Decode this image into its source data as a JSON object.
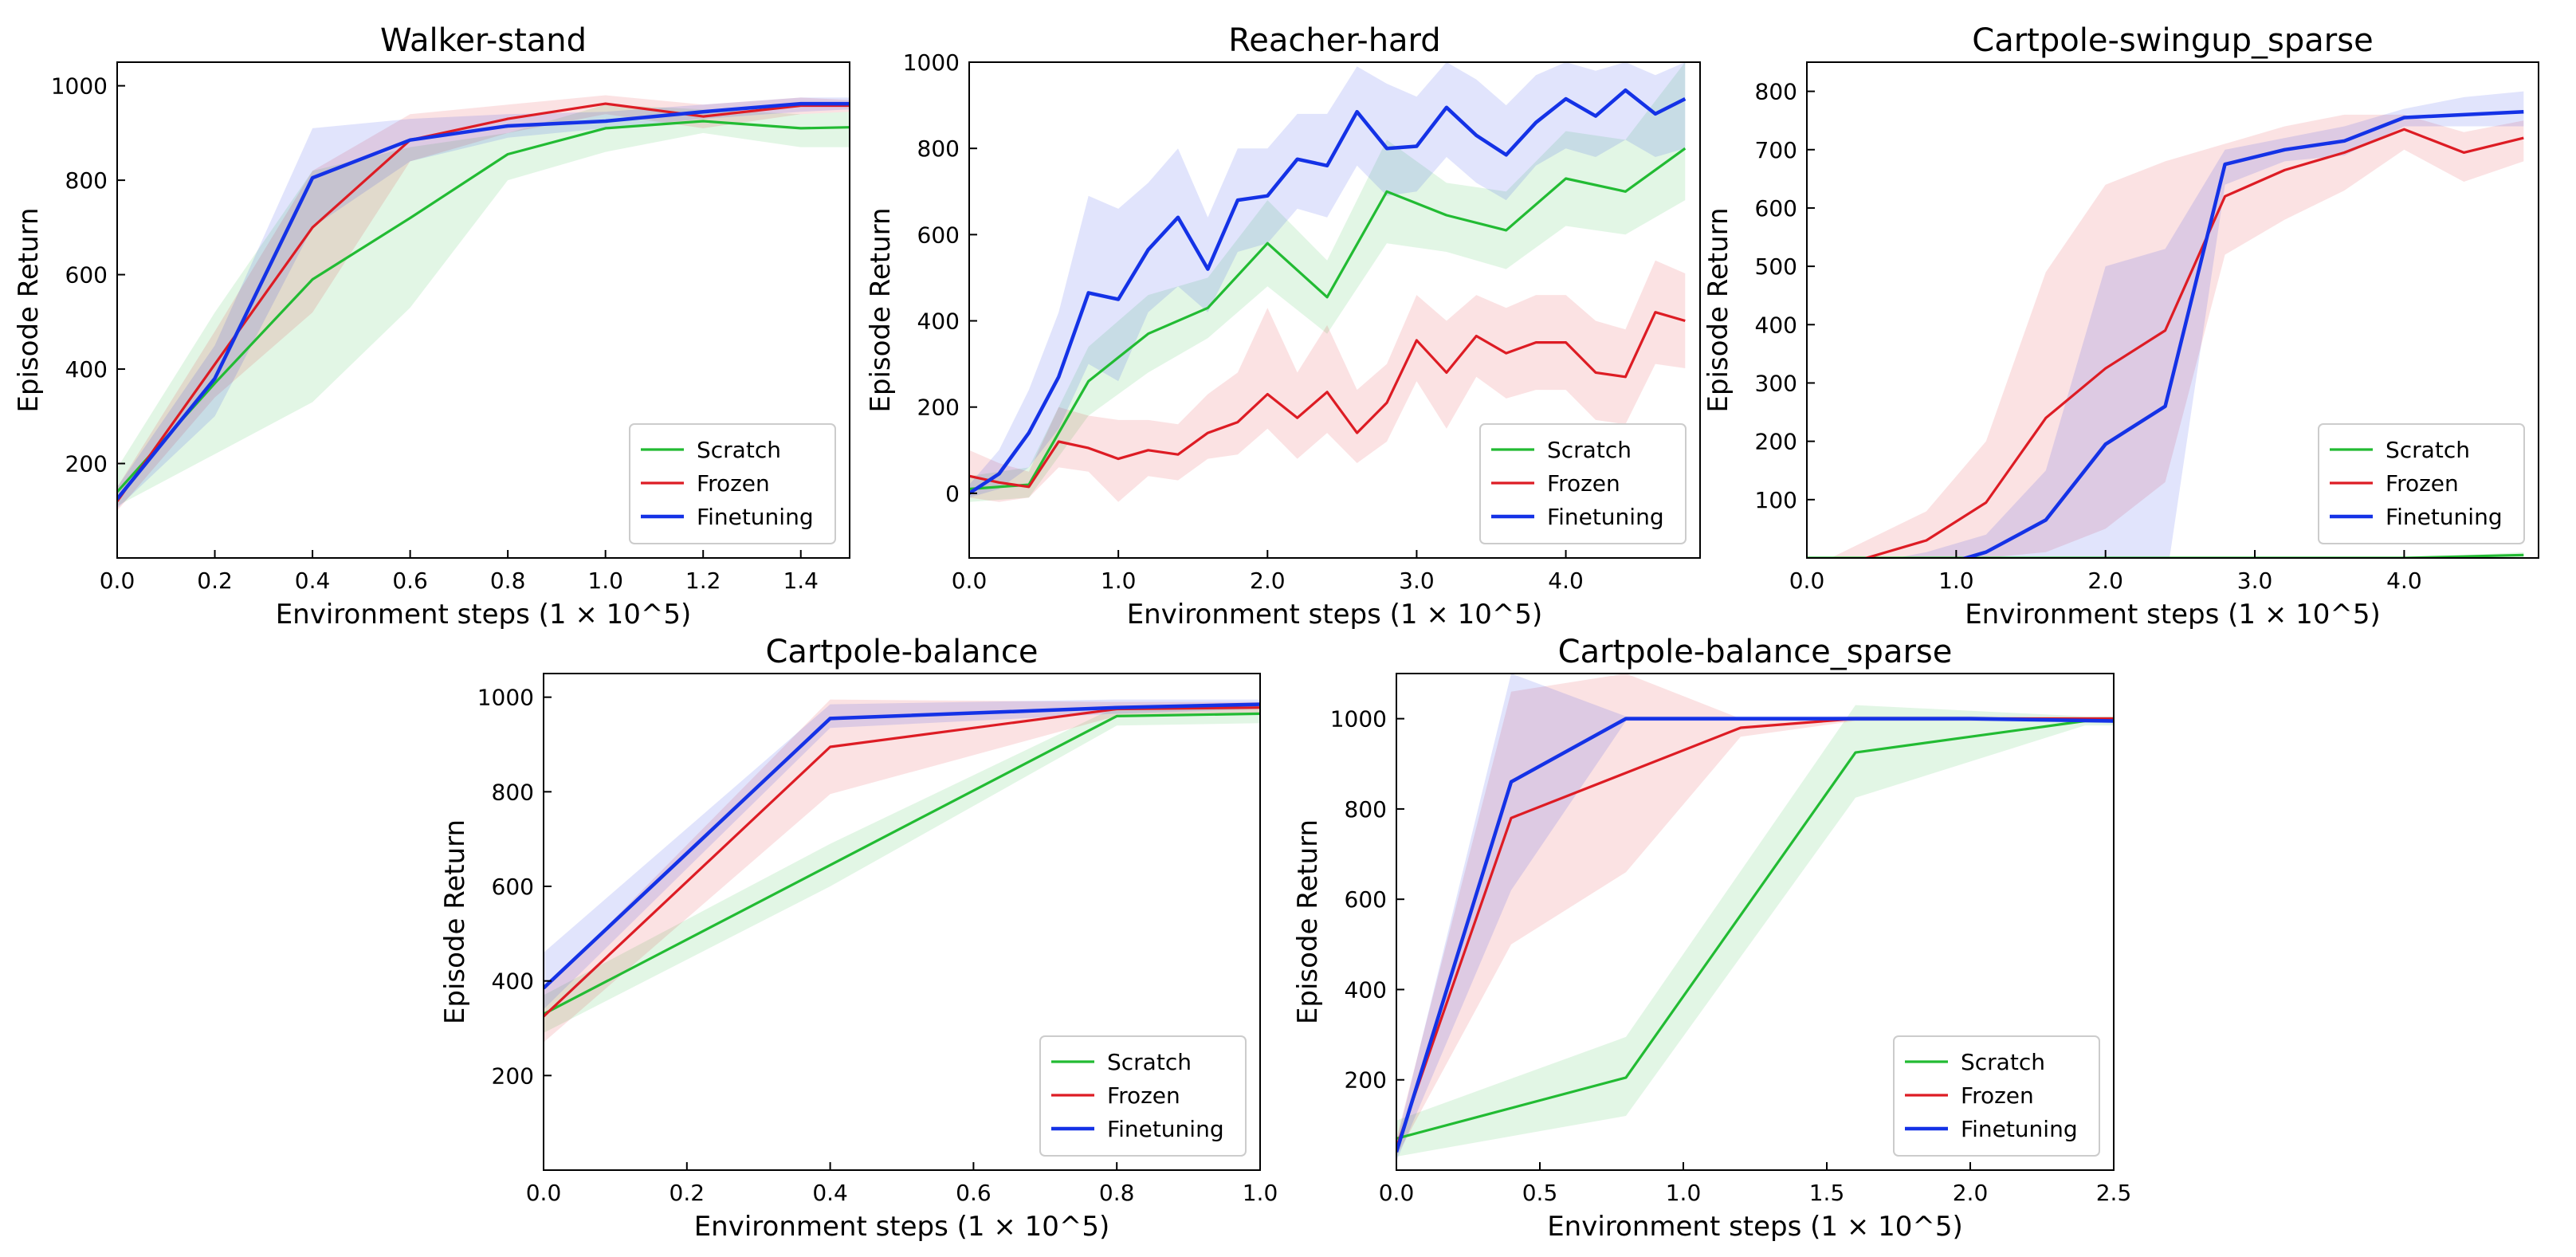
{
  "chart_data": [
    {
      "type": "line",
      "title": "Walker-stand",
      "xlabel": "Environment steps (1 × 10^5)",
      "ylabel": "Episode Return",
      "xlim": [
        0,
        1.5
      ],
      "ylim": [
        0,
        1050
      ],
      "xticks": [
        0,
        0.2,
        0.4,
        0.6,
        0.8,
        1.0,
        1.2,
        1.4
      ],
      "xtick_labels": [
        "0.0",
        "0.2",
        "0.4",
        "0.6",
        "0.8",
        "1.0",
        "1.2",
        "1.4"
      ],
      "yticks": [
        200,
        400,
        600,
        800,
        1000
      ],
      "ytick_labels": [
        "200",
        "400",
        "600",
        "800",
        "1000"
      ],
      "legend_position": "bottom-right",
      "series": [
        {
          "name": "Scratch",
          "color": "#22bb33",
          "x": [
            0,
            0.2,
            0.4,
            0.6,
            0.8,
            1.0,
            1.2,
            1.4,
            1.5
          ],
          "y": [
            140,
            370,
            590,
            720,
            855,
            910,
            925,
            910,
            912
          ],
          "lower": [
            110,
            220,
            330,
            530,
            800,
            860,
            900,
            870,
            870
          ],
          "upper": [
            190,
            520,
            820,
            870,
            900,
            960,
            950,
            940,
            945
          ]
        },
        {
          "name": "Frozen",
          "color": "#dd1c24",
          "x": [
            0,
            0.2,
            0.4,
            0.6,
            0.8,
            1.0,
            1.2,
            1.4,
            1.5
          ],
          "y": [
            120,
            410,
            700,
            885,
            930,
            962,
            935,
            958,
            958
          ],
          "lower": [
            100,
            340,
            520,
            840,
            900,
            940,
            910,
            940,
            945
          ],
          "upper": [
            150,
            480,
            820,
            940,
            960,
            980,
            960,
            975,
            970
          ]
        },
        {
          "name": "Finetuning",
          "color": "#1432e6",
          "x": [
            0,
            0.2,
            0.4,
            0.6,
            0.8,
            1.0,
            1.2,
            1.4,
            1.5
          ],
          "y": [
            125,
            380,
            805,
            885,
            915,
            925,
            945,
            962,
            962
          ],
          "lower": [
            105,
            300,
            700,
            840,
            890,
            910,
            930,
            945,
            950
          ],
          "upper": [
            150,
            450,
            910,
            930,
            940,
            945,
            960,
            975,
            975
          ]
        }
      ]
    },
    {
      "type": "line",
      "title": "Reacher-hard",
      "xlabel": "Environment steps (1 × 10^5)",
      "ylabel": "Episode Return",
      "xlim": [
        0,
        4.9
      ],
      "ylim": [
        -150,
        1000
      ],
      "xticks": [
        0,
        1,
        2,
        3,
        4
      ],
      "xtick_labels": [
        "0.0",
        "1.0",
        "2.0",
        "3.0",
        "4.0"
      ],
      "yticks": [
        0,
        200,
        400,
        600,
        800,
        1000
      ],
      "ytick_labels": [
        "0",
        "200",
        "400",
        "600",
        "800",
        "1000"
      ],
      "legend_position": "bottom-right",
      "series": [
        {
          "name": "Scratch",
          "color": "#22bb33",
          "x": [
            0,
            0.4,
            0.8,
            1.2,
            1.6,
            2.0,
            2.4,
            2.8,
            3.2,
            3.6,
            4.0,
            4.4,
            4.8
          ],
          "y": [
            10,
            20,
            260,
            370,
            430,
            580,
            455,
            700,
            645,
            610,
            730,
            700,
            800
          ],
          "lower": [
            -20,
            -10,
            180,
            280,
            360,
            480,
            370,
            580,
            560,
            520,
            620,
            600,
            680
          ],
          "upper": [
            40,
            60,
            340,
            460,
            500,
            680,
            540,
            820,
            720,
            700,
            840,
            820,
            1000
          ]
        },
        {
          "name": "Frozen",
          "color": "#dd1c24",
          "x": [
            0,
            0.2,
            0.4,
            0.6,
            0.8,
            1.0,
            1.2,
            1.4,
            1.6,
            1.8,
            2.0,
            2.2,
            2.4,
            2.6,
            2.8,
            3.0,
            3.2,
            3.4,
            3.6,
            3.8,
            4.0,
            4.2,
            4.4,
            4.6,
            4.8
          ],
          "y": [
            40,
            25,
            15,
            120,
            105,
            80,
            100,
            90,
            140,
            165,
            230,
            175,
            235,
            140,
            210,
            355,
            280,
            365,
            325,
            350,
            350,
            280,
            270,
            420,
            400
          ],
          "lower": [
            -10,
            -20,
            -10,
            60,
            50,
            -20,
            40,
            30,
            80,
            90,
            150,
            80,
            140,
            70,
            120,
            260,
            150,
            270,
            220,
            240,
            240,
            170,
            160,
            300,
            290
          ],
          "upper": [
            100,
            70,
            50,
            200,
            180,
            170,
            170,
            160,
            230,
            280,
            430,
            280,
            390,
            240,
            300,
            460,
            400,
            460,
            430,
            460,
            460,
            400,
            380,
            540,
            510
          ]
        },
        {
          "name": "Finetuning",
          "color": "#1432e6",
          "x": [
            0,
            0.2,
            0.4,
            0.6,
            0.8,
            1.0,
            1.2,
            1.4,
            1.6,
            1.8,
            2.0,
            2.2,
            2.4,
            2.6,
            2.8,
            3.0,
            3.2,
            3.4,
            3.6,
            3.8,
            4.0,
            4.2,
            4.4,
            4.6,
            4.8
          ],
          "y": [
            0,
            45,
            140,
            270,
            465,
            450,
            565,
            640,
            520,
            680,
            690,
            775,
            760,
            885,
            800,
            805,
            895,
            830,
            785,
            860,
            915,
            875,
            935,
            880,
            915
          ],
          "lower": [
            -10,
            10,
            60,
            150,
            300,
            260,
            420,
            480,
            420,
            560,
            580,
            660,
            640,
            760,
            690,
            700,
            780,
            720,
            680,
            760,
            800,
            780,
            820,
            780,
            800
          ],
          "upper": [
            20,
            100,
            240,
            420,
            690,
            660,
            720,
            800,
            640,
            800,
            800,
            880,
            880,
            990,
            950,
            920,
            1000,
            960,
            900,
            970,
            1000,
            980,
            1000,
            970,
            1000
          ]
        }
      ]
    },
    {
      "type": "line",
      "title": "Cartpole-swingup_sparse",
      "xlabel": "Environment steps (1 × 10^5)",
      "ylabel": "Episode Return",
      "xlim": [
        0,
        4.9
      ],
      "ylim": [
        0,
        850
      ],
      "xticks": [
        0,
        1,
        2,
        3,
        4
      ],
      "xtick_labels": [
        "0.0",
        "1.0",
        "2.0",
        "3.0",
        "4.0"
      ],
      "yticks": [
        100,
        200,
        300,
        400,
        500,
        600,
        700,
        800
      ],
      "ytick_labels": [
        "100",
        "200",
        "300",
        "400",
        "500",
        "600",
        "700",
        "800"
      ],
      "legend_position": "bottom-right",
      "series": [
        {
          "name": "Scratch",
          "color": "#22bb33",
          "x": [
            0,
            0.8,
            1.6,
            2.4,
            3.2,
            4.0,
            4.8
          ],
          "y": [
            0,
            0,
            0,
            0,
            0,
            0,
            5
          ],
          "lower": [
            0,
            0,
            0,
            0,
            0,
            0,
            0
          ],
          "upper": [
            0,
            0,
            0,
            0,
            0,
            0,
            10
          ]
        },
        {
          "name": "Frozen",
          "color": "#dd1c24",
          "x": [
            0,
            0.4,
            0.8,
            1.2,
            1.6,
            2.0,
            2.4,
            2.8,
            3.2,
            3.6,
            4.0,
            4.4,
            4.8
          ],
          "y": [
            -50,
            0,
            30,
            95,
            240,
            325,
            390,
            620,
            665,
            695,
            735,
            695,
            720
          ],
          "lower": [
            -50,
            -20,
            -10,
            0,
            10,
            50,
            130,
            520,
            580,
            630,
            700,
            645,
            680
          ],
          "upper": [
            -20,
            30,
            80,
            200,
            490,
            640,
            680,
            710,
            740,
            760,
            760,
            730,
            750
          ]
        },
        {
          "name": "Finetuning",
          "color": "#1432e6",
          "x": [
            0,
            0.4,
            0.8,
            1.2,
            1.6,
            2.0,
            2.4,
            2.8,
            3.2,
            3.6,
            4.0,
            4.4,
            4.8
          ],
          "y": [
            -50,
            -40,
            -20,
            10,
            65,
            195,
            260,
            675,
            700,
            715,
            755,
            760,
            765
          ],
          "lower": [
            -50,
            -50,
            -50,
            -50,
            -50,
            -50,
            -50,
            640,
            680,
            690,
            740,
            740,
            740
          ],
          "upper": [
            -20,
            -10,
            10,
            40,
            150,
            500,
            530,
            700,
            720,
            740,
            770,
            790,
            800
          ]
        }
      ]
    },
    {
      "type": "line",
      "title": "Cartpole-balance",
      "xlabel": "Environment steps (1 × 10^5)",
      "ylabel": "Episode Return",
      "xlim": [
        0,
        1.0
      ],
      "ylim": [
        0,
        1050
      ],
      "xticks": [
        0,
        0.2,
        0.4,
        0.6,
        0.8,
        1.0
      ],
      "xtick_labels": [
        "0.0",
        "0.2",
        "0.4",
        "0.6",
        "0.8",
        "1.0"
      ],
      "yticks": [
        200,
        400,
        600,
        800,
        1000
      ],
      "ytick_labels": [
        "200",
        "400",
        "600",
        "800",
        "1000"
      ],
      "legend_position": "bottom-right",
      "series": [
        {
          "name": "Scratch",
          "color": "#22bb33",
          "x": [
            0,
            0.4,
            0.8,
            1.0
          ],
          "y": [
            330,
            645,
            960,
            965
          ],
          "lower": [
            290,
            600,
            940,
            945
          ],
          "upper": [
            370,
            690,
            980,
            985
          ]
        },
        {
          "name": "Frozen",
          "color": "#dd1c24",
          "x": [
            0,
            0.4,
            0.8,
            1.0
          ],
          "y": [
            325,
            895,
            975,
            978
          ],
          "lower": [
            270,
            795,
            960,
            965
          ],
          "upper": [
            380,
            995,
            990,
            990
          ]
        },
        {
          "name": "Finetuning",
          "color": "#1432e6",
          "x": [
            0,
            0.4,
            0.8,
            1.0
          ],
          "y": [
            385,
            955,
            978,
            985
          ],
          "lower": [
            340,
            935,
            965,
            975
          ],
          "upper": [
            460,
            985,
            995,
            995
          ]
        }
      ]
    },
    {
      "type": "line",
      "title": "Cartpole-balance_sparse",
      "xlabel": "Environment steps (1 × 10^5)",
      "ylabel": "Episode Return",
      "xlim": [
        0,
        2.5
      ],
      "ylim": [
        0,
        1100
      ],
      "xticks": [
        0,
        0.5,
        1.0,
        1.5,
        2.0,
        2.5
      ],
      "xtick_labels": [
        "0.0",
        "0.5",
        "1.0",
        "1.5",
        "2.0",
        "2.5"
      ],
      "yticks": [
        200,
        400,
        600,
        800,
        1000
      ],
      "ytick_labels": [
        "200",
        "400",
        "600",
        "800",
        "1000"
      ],
      "legend_position": "bottom-right",
      "series": [
        {
          "name": "Scratch",
          "color": "#22bb33",
          "x": [
            0,
            0.8,
            1.6,
            2.4,
            2.5
          ],
          "y": [
            70,
            205,
            925,
            995,
            995
          ],
          "lower": [
            30,
            120,
            825,
            985,
            985
          ],
          "upper": [
            110,
            295,
            1030,
            1005,
            1005
          ]
        },
        {
          "name": "Frozen",
          "color": "#dd1c24",
          "x": [
            0,
            0.4,
            0.8,
            1.2,
            1.6,
            2.0,
            2.5
          ],
          "y": [
            50,
            780,
            880,
            980,
            1000,
            1000,
            1000
          ],
          "lower": [
            30,
            500,
            660,
            960,
            995,
            995,
            995
          ],
          "upper": [
            70,
            1060,
            1100,
            1000,
            1005,
            1005,
            1005
          ]
        },
        {
          "name": "Finetuning",
          "color": "#1432e6",
          "x": [
            0,
            0.4,
            0.8,
            1.6,
            2.0,
            2.5
          ],
          "y": [
            40,
            860,
            1000,
            1000,
            1000,
            995
          ],
          "lower": [
            20,
            620,
            995,
            995,
            995,
            990
          ],
          "upper": [
            60,
            1100,
            1005,
            1005,
            1005,
            1000
          ]
        }
      ]
    }
  ]
}
